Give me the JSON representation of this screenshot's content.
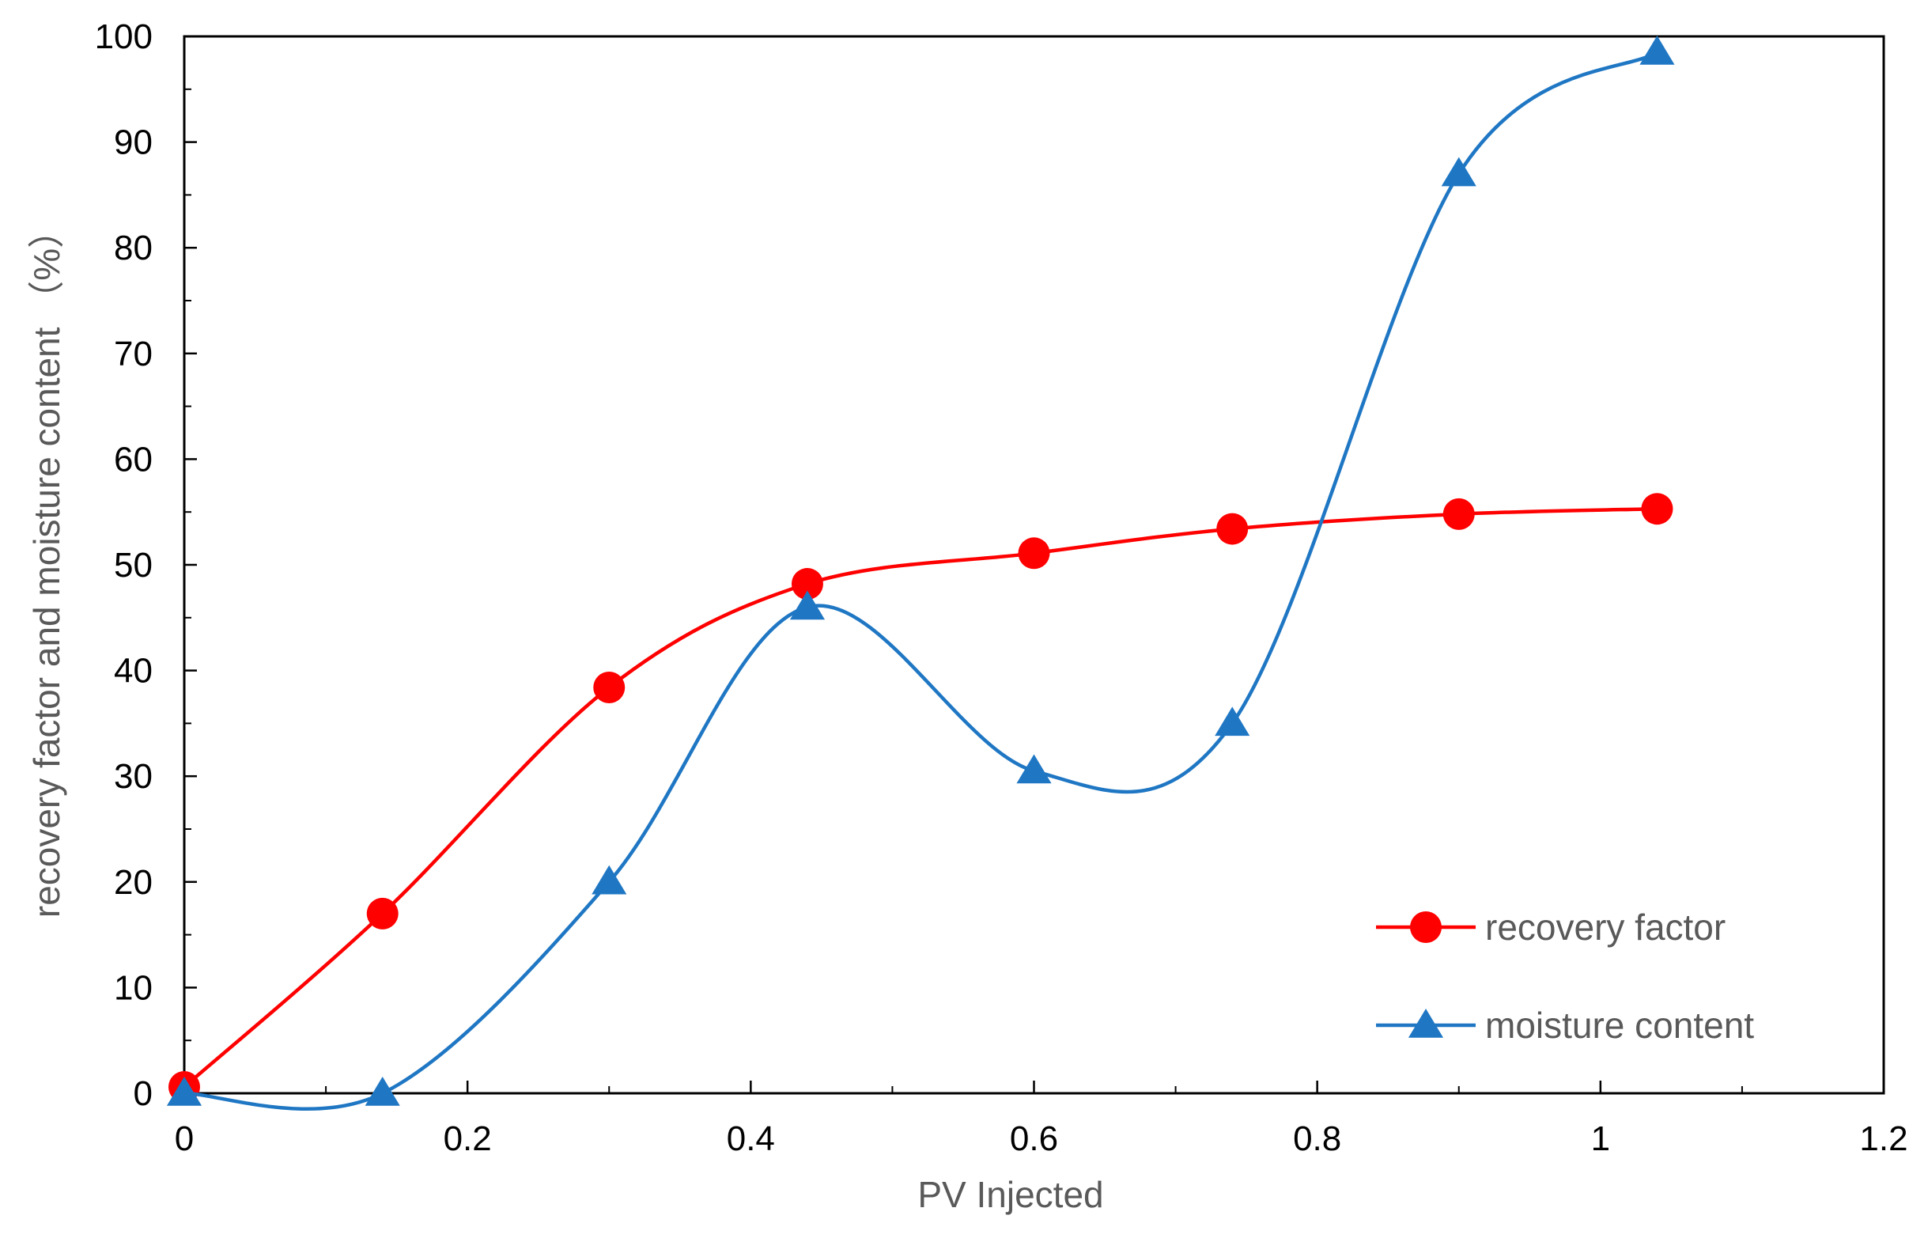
{
  "chart_data": {
    "type": "line",
    "title": "",
    "xlabel": "PV Injected",
    "ylabel": "recovery factor and moisture content （%）",
    "xlim": [
      0,
      1.2
    ],
    "ylim": [
      0,
      100
    ],
    "x_ticks": [
      0,
      0.2,
      0.4,
      0.6,
      0.8,
      1,
      1.2
    ],
    "x_tick_labels": [
      "0",
      "0.2",
      "0.4",
      "0.6",
      "0.8",
      "1",
      "1.2"
    ],
    "y_ticks": [
      0,
      10,
      20,
      30,
      40,
      50,
      60,
      70,
      80,
      90,
      100
    ],
    "y_tick_labels": [
      "0",
      "10",
      "20",
      "30",
      "40",
      "50",
      "60",
      "70",
      "80",
      "90",
      "100"
    ],
    "x_minor_tick_step": 0.1,
    "y_minor_tick_step": 5,
    "grid": false,
    "legend_position": "bottom-right",
    "series": [
      {
        "name": "recovery factor",
        "marker": "circle",
        "color": "#FF0000",
        "x": [
          0,
          0.14,
          0.3,
          0.44,
          0.6,
          0.74,
          0.9,
          1.04
        ],
        "values": [
          0.6,
          17,
          38.4,
          48.2,
          51.1,
          53.4,
          54.8,
          55.3
        ]
      },
      {
        "name": "moisture content",
        "marker": "triangle",
        "color": "#1F77C4",
        "x": [
          0,
          0.14,
          0.3,
          0.44,
          0.6,
          0.74,
          0.9,
          1.04
        ],
        "values": [
          0,
          0,
          20,
          46,
          30.5,
          35,
          87,
          98.5
        ]
      }
    ]
  }
}
